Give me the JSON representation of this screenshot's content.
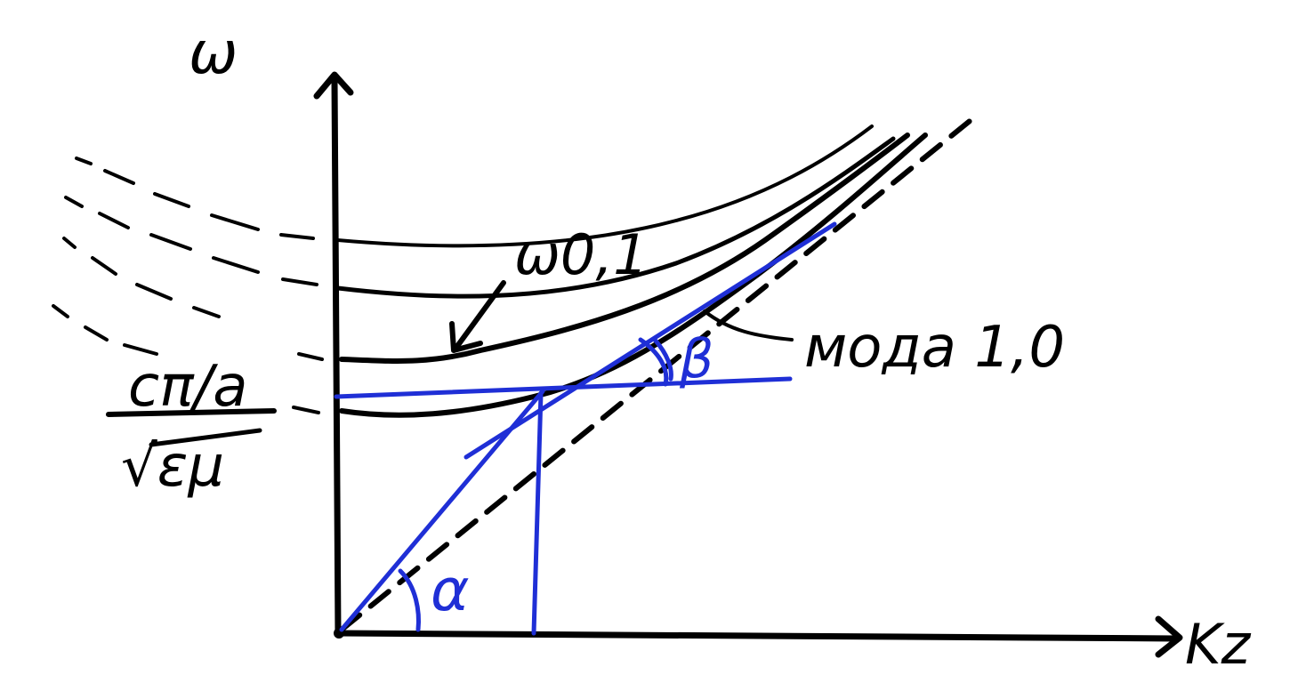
{
  "labels": {
    "y_axis": "ω",
    "x_axis": "Kz",
    "curve_label": "ω0,1",
    "mode_label": "мода 1,0",
    "cutoff_numerator": "cπ/a",
    "cutoff_denominator": "√εμ",
    "angle_alpha": "α",
    "angle_beta": "β"
  },
  "colors": {
    "ink": "#000000",
    "construction": "#1f2fd6",
    "background": "#ffffff"
  }
}
